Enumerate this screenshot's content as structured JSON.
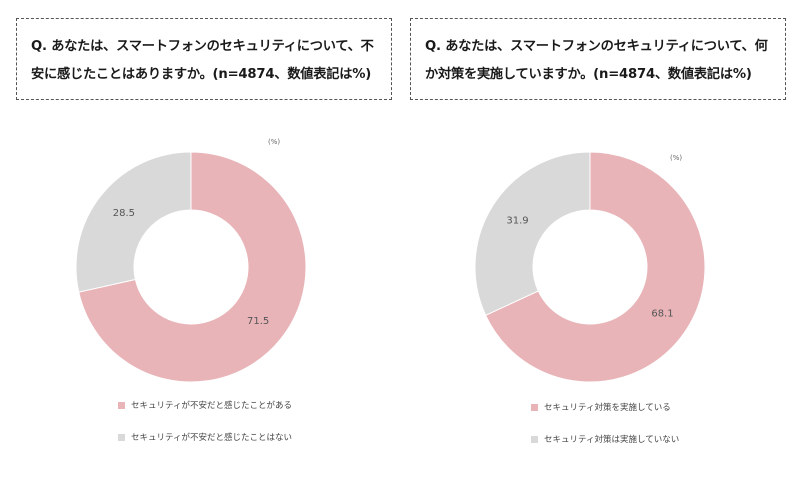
{
  "questions": {
    "left": {
      "line1": "Q. あなたは、スマートフォンのセキュリティについて、不",
      "line2": "安に感じたことはありますか。(n=4874、数値表記は%)"
    },
    "right": {
      "line1": "Q. あなたは、スマートフォンのセキュリティについて、何",
      "line2": "か対策を実施していますか。(n=4874、数値表記は%)"
    }
  },
  "colors": {
    "primary": "#E8B4B8",
    "secondary": "#D9D9D9"
  },
  "chart_data": [
    {
      "type": "pie",
      "unit": "(%)",
      "categories": [
        "セキュリティが不安だと感じたことがある",
        "セキュリティが不安だと感じたことはない"
      ],
      "values": [
        71.5,
        28.5
      ],
      "value_labels": [
        "71.5",
        "28.5"
      ]
    },
    {
      "type": "pie",
      "unit": "(%)",
      "categories": [
        "セキュリティ対策を実施している",
        "セキュリティ対策は実施していない"
      ],
      "values": [
        68.1,
        31.9
      ],
      "value_labels": [
        "68.1",
        "31.9"
      ]
    }
  ]
}
